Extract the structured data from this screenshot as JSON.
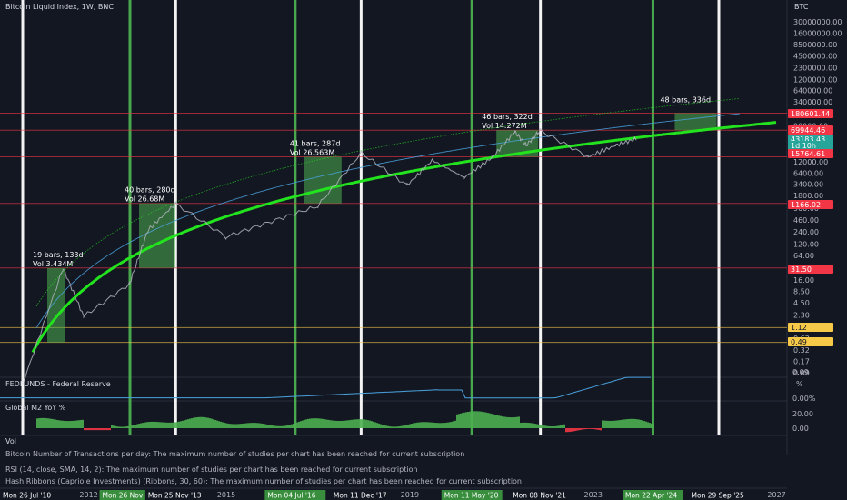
{
  "header": {
    "title": "Bitcoin Liquid Index, 1W, BNC",
    "currency": "BTC"
  },
  "colors": {
    "background": "#131722",
    "green_line": "#23e21e",
    "blue_line": "#4aa3df",
    "red_line": "#f23645",
    "yellow_line": "#f7c948",
    "cycle_green": "#4caf50",
    "cycle_white": "#ffffff"
  },
  "chart_data": {
    "type": "line",
    "title": "Bitcoin Liquid Index, 1W, BNC",
    "price_scale": "log",
    "y_axis_ticks": [
      "30000000.00",
      "16000000.00",
      "8500000.00",
      "4500000.00",
      "2300000.00",
      "1200000.00",
      "640000.00",
      "340000.00",
      "180000.00",
      "90000.00",
      "48000.00",
      "25000.00",
      "12000.00",
      "6400.00",
      "3400.00",
      "1800.00",
      "900.00",
      "460.00",
      "240.00",
      "120.00",
      "64.00",
      "32.00",
      "16.00",
      "8.50",
      "4.50",
      "2.30",
      "1.20",
      "0.62",
      "0.32",
      "0.17",
      "0.09"
    ],
    "price_tags": [
      {
        "value": "180601.44",
        "color": "#f23645"
      },
      {
        "value": "69944.46",
        "color": "#f23645"
      },
      {
        "value": "43183.43",
        "color": "#26a69a"
      },
      {
        "value": "1d 10h",
        "color": "#26a69a"
      },
      {
        "value": "15764.61",
        "color": "#f23645"
      },
      {
        "value": "1166.02",
        "color": "#f23645"
      },
      {
        "value": "31.50",
        "color": "#f23645"
      },
      {
        "value": "1.12",
        "color": "#f7c948"
      },
      {
        "value": "0.49",
        "color": "#f7c948"
      }
    ],
    "cycle_boxes": [
      {
        "bars": "19 bars, 133d",
        "vol": "Vol 3.434M"
      },
      {
        "bars": "40 bars, 280d",
        "vol": "Vol 26.68M"
      },
      {
        "bars": "41 bars, 287d",
        "vol": "Vol 26.563M"
      },
      {
        "bars": "46 bars, 322d",
        "vol": "Vol 14.272M"
      },
      {
        "bars": "48 bars, 336d",
        "vol": ""
      }
    ],
    "x_axis_labels": [
      "2012",
      "2015",
      "2019",
      "2023",
      "2027"
    ],
    "highlighted_dates": [
      {
        "label": "Mon 26 Jul '10",
        "kind": "white"
      },
      {
        "label": "Mon 26 Nov '12",
        "kind": "green"
      },
      {
        "label": "Mon 25 Nov '13",
        "kind": "white"
      },
      {
        "label": "Mon 04 Jul '16",
        "kind": "green"
      },
      {
        "label": "Mon 11 Dec '17",
        "kind": "white"
      },
      {
        "label": "Mon 11 May '20",
        "kind": "green"
      },
      {
        "label": "Mon 08 Nov '21",
        "kind": "white"
      },
      {
        "label": "Mon 22 Apr '24",
        "kind": "green"
      },
      {
        "label": "Mon 29 Sep '25",
        "kind": "white"
      }
    ],
    "series": [
      {
        "name": "Bitcoin Liquid Index",
        "kind": "price"
      },
      {
        "name": "FEDFUNDS - Federal Reserve",
        "kind": "pane",
        "scale": [
          "%"
        ]
      },
      {
        "name": "Global M2 YoY %",
        "kind": "pane",
        "scale": [
          "0.00%",
          "20.00",
          "0.00"
        ]
      }
    ],
    "fed_pane_ticks": [
      "0.09",
      "%"
    ],
    "m2_pane_ticks": [
      "0.00%",
      "20.00",
      "0.00"
    ],
    "volume_label": "Vol",
    "grid": false
  },
  "studies": [
    "Bitcoin Number of Transactions per day: The maximum number of studies per chart has been reached for current subscription",
    "RSI (14, close, SMA, 14, 2): The maximum number of studies per chart has been reached for current subscription",
    "Hash Ribbons (Capriole Investments) (Ribbons, 30, 60): The maximum number of studies per chart has been reached for current subscription"
  ]
}
